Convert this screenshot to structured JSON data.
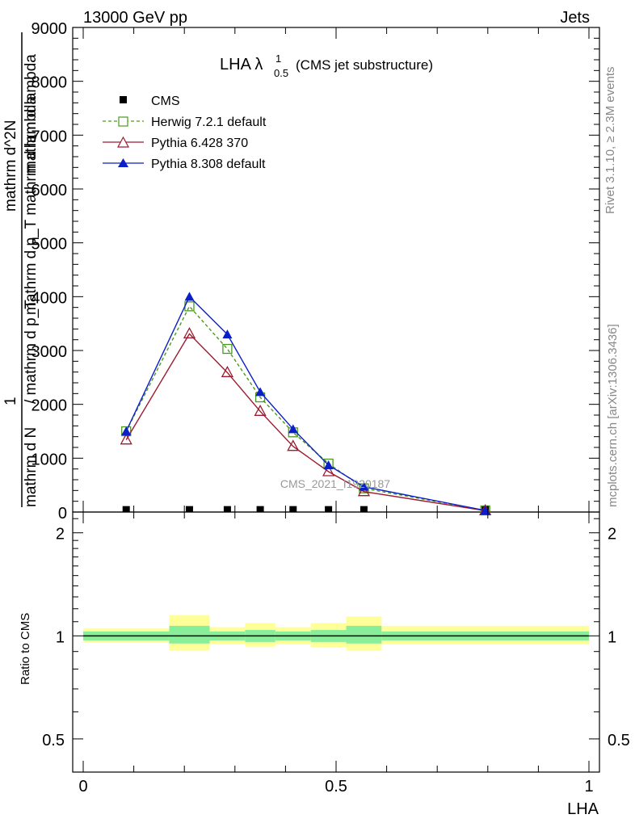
{
  "header": {
    "left": "13000 GeV pp",
    "right": "Jets"
  },
  "plot_title": {
    "main": "LHA λ",
    "sup": "1",
    "sub": "0.5",
    "note": "(CMS jet substructure)"
  },
  "side_labels": {
    "rivet": "Rivet 3.1.10, ≥ 2.3M events",
    "mcplots": "mcplots.cern.ch [arXiv:1306.3436]"
  },
  "watermark": "CMS_2021_I1920187",
  "ylabel_main": {
    "numerator_1": "1",
    "denominator_1": "mathrm d N",
    "numerator_2": "mathrm d^2N",
    "denominator_2": "mathrm d p_T mathrm d lambda",
    "overlap_1": "/ mathrm d p_T",
    "overlap_2": "mathrm d lambda"
  },
  "colors": {
    "cms": "#000000",
    "herwig": "#4b9a1e",
    "pythia6": "#9b1b30",
    "pythia8": "#0a1fc8",
    "band_outer": "#ffff99",
    "band_inner": "#88ee99"
  },
  "chart_data": [
    {
      "type": "line",
      "panel": "main",
      "xlim": [
        0,
        1
      ],
      "ylim": [
        0,
        9000
      ],
      "yticks": [
        0,
        1000,
        2000,
        3000,
        4000,
        5000,
        6000,
        7000,
        8000,
        9000
      ],
      "ytick_labels": [
        "0",
        "1000",
        "2000",
        "3000",
        "4000",
        "5000",
        "6000",
        "7000",
        "8000",
        "9000"
      ],
      "legend_position": "top-left",
      "x": [
        0.085,
        0.21,
        0.285,
        0.35,
        0.415,
        0.485,
        0.555,
        0.795
      ],
      "series": [
        {
          "name": "CMS",
          "marker": "filled-square",
          "style": "points",
          "values": [
            5,
            5,
            5,
            5,
            5,
            5,
            5,
            5
          ]
        },
        {
          "name": "Herwig 7.2.1 default",
          "marker": "open-square",
          "style": "dashed",
          "values": [
            1500,
            3820,
            3030,
            2130,
            1480,
            900,
            440,
            30
          ]
        },
        {
          "name": "Pythia 6.428 370",
          "marker": "open-triangle",
          "style": "solid",
          "values": [
            1340,
            3310,
            2590,
            1870,
            1220,
            750,
            380,
            25
          ]
        },
        {
          "name": "Pythia 8.308 default",
          "marker": "filled-triangle",
          "style": "solid",
          "values": [
            1500,
            4000,
            3300,
            2230,
            1540,
            870,
            470,
            30
          ]
        }
      ]
    },
    {
      "type": "area",
      "panel": "ratio",
      "ylabel": "Ratio to CMS",
      "xlabel": "LHA",
      "xlim": [
        0,
        1
      ],
      "ylim": [
        0.4,
        2.3
      ],
      "log_y": true,
      "xticks": [
        0,
        0.5,
        1
      ],
      "xtick_labels": [
        "0",
        "0.5",
        "1"
      ],
      "yticks": [
        0.5,
        1,
        2
      ],
      "ytick_labels": [
        "0.5",
        "1",
        "2"
      ],
      "reference": 1,
      "bins": [
        {
          "x0": 0.0,
          "x1": 0.17,
          "outer": [
            0.955,
            1.05
          ],
          "inner": [
            0.97,
            1.03
          ]
        },
        {
          "x0": 0.17,
          "x1": 0.25,
          "outer": [
            0.905,
            1.15
          ],
          "inner": [
            0.95,
            1.07
          ]
        },
        {
          "x0": 0.25,
          "x1": 0.32,
          "outer": [
            0.945,
            1.06
          ],
          "inner": [
            0.97,
            1.03
          ]
        },
        {
          "x0": 0.32,
          "x1": 0.38,
          "outer": [
            0.93,
            1.09
          ],
          "inner": [
            0.96,
            1.04
          ]
        },
        {
          "x0": 0.38,
          "x1": 0.45,
          "outer": [
            0.945,
            1.06
          ],
          "inner": [
            0.97,
            1.03
          ]
        },
        {
          "x0": 0.45,
          "x1": 0.52,
          "outer": [
            0.925,
            1.09
          ],
          "inner": [
            0.96,
            1.04
          ]
        },
        {
          "x0": 0.52,
          "x1": 0.59,
          "outer": [
            0.905,
            1.14
          ],
          "inner": [
            0.95,
            1.07
          ]
        },
        {
          "x0": 0.59,
          "x1": 1.0,
          "outer": [
            0.945,
            1.07
          ],
          "inner": [
            0.97,
            1.03
          ]
        }
      ]
    }
  ]
}
